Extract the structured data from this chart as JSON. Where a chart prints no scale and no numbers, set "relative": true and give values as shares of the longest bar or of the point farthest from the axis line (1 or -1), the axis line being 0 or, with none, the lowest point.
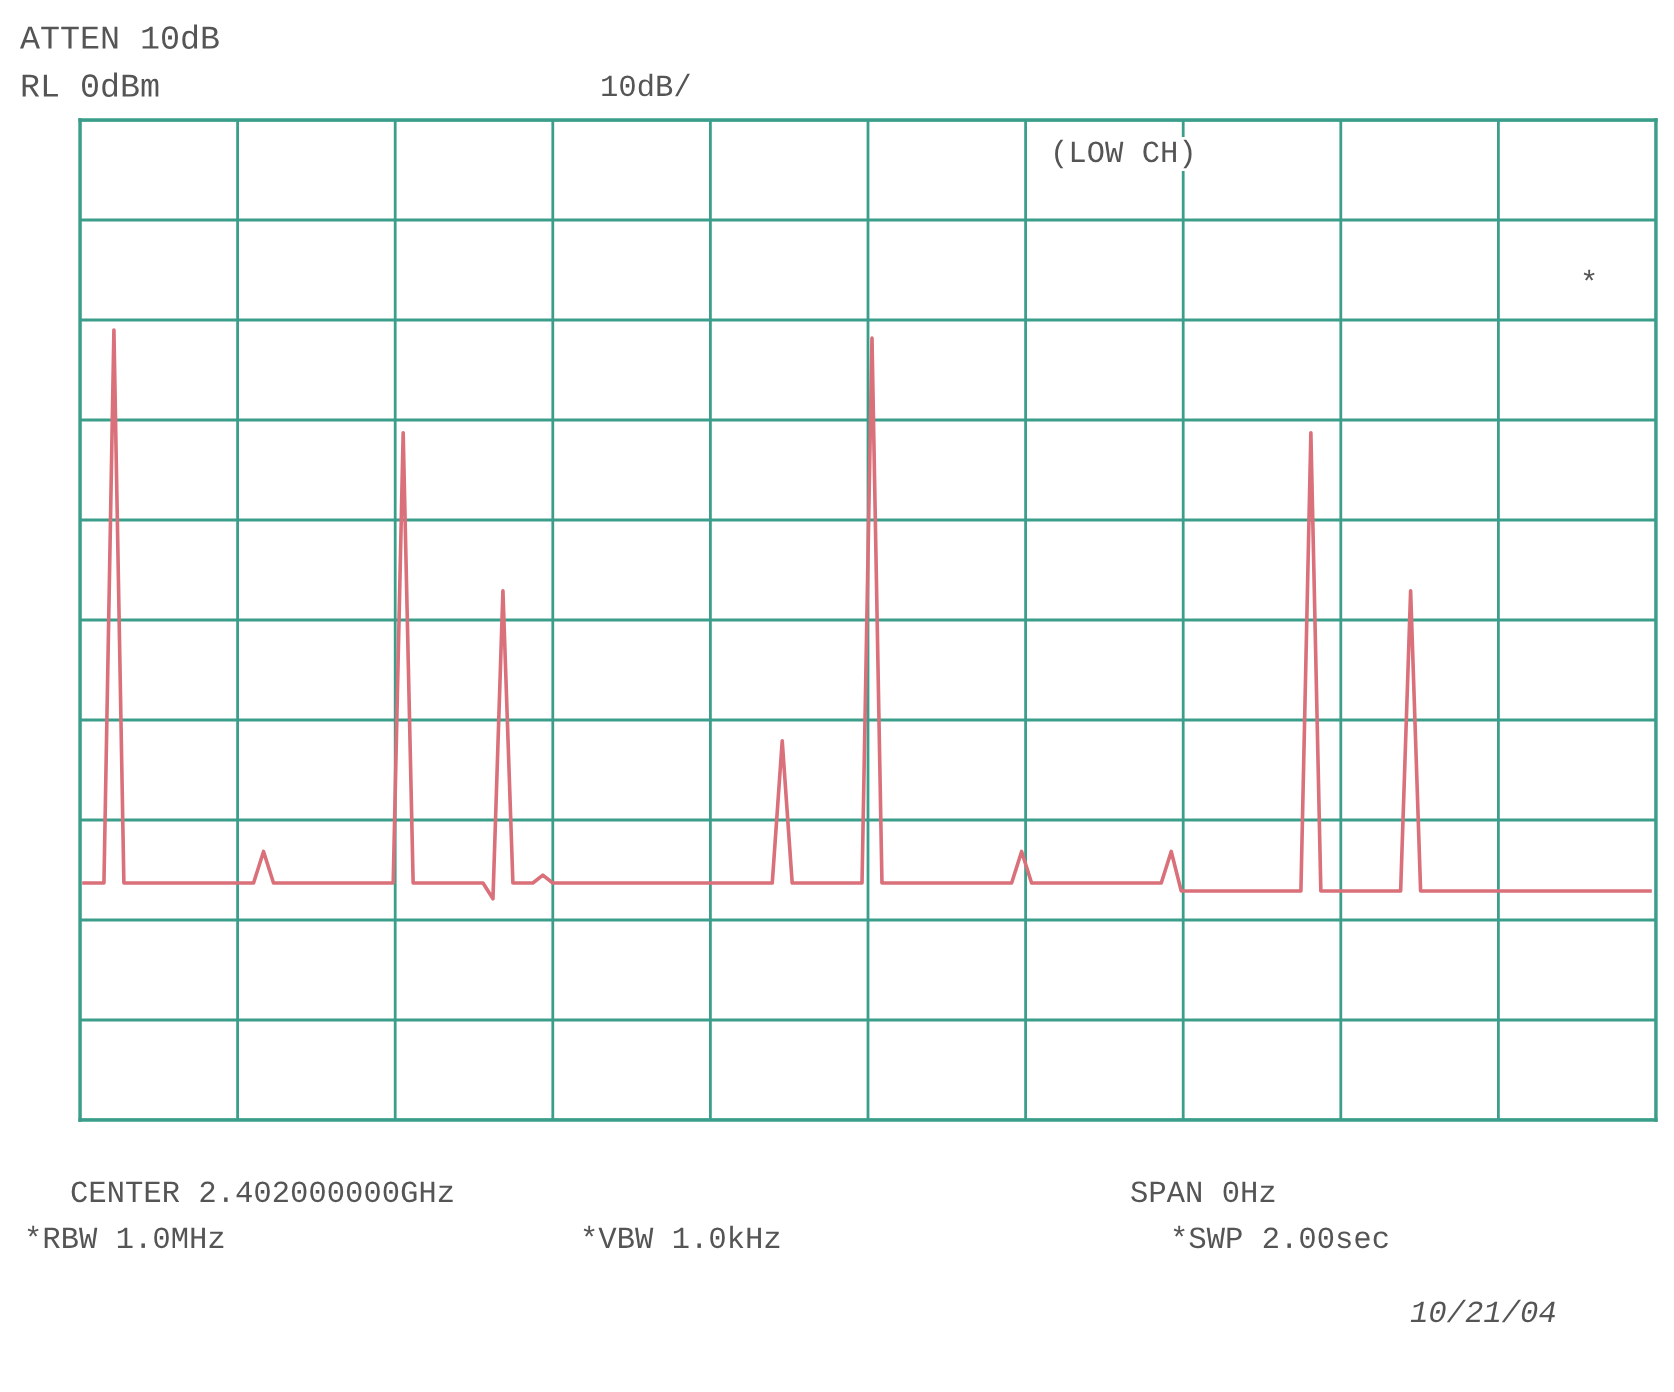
{
  "chart_data": {
    "type": "line",
    "title": "ATTEN 10dB",
    "subtitle": "RL 0dBm",
    "annotations": [
      "10dB/",
      "(LOW CH)",
      "*",
      "CENTER 2.402000000GHz",
      "SPAN 0Hz",
      "*RBW 1.0MHz",
      "*VBW 1.0kHz",
      "*SWP 2.00sec",
      "10/21/04"
    ],
    "categories": [
      null,
      null,
      null,
      null,
      null,
      null,
      null,
      null,
      null,
      null,
      null,
      null,
      null,
      null,
      null,
      null,
      null,
      null,
      null,
      null,
      null,
      null,
      null,
      null,
      null,
      null,
      null,
      null,
      null,
      null,
      null,
      null,
      null,
      null,
      null,
      null,
      null,
      null,
      null,
      null,
      null,
      null,
      null,
      null,
      null,
      null,
      null,
      null,
      null,
      null,
      null,
      null,
      null,
      null,
      null,
      null,
      null,
      null,
      null,
      null,
      null,
      null,
      null,
      null,
      null,
      null,
      null,
      null,
      null,
      null,
      null,
      null,
      null,
      null,
      null,
      null,
      null,
      null,
      null,
      null,
      null,
      null,
      null,
      null,
      null,
      null,
      null,
      null,
      null,
      null,
      null,
      null,
      null,
      null,
      null,
      null,
      null,
      null,
      null,
      null,
      null,
      null,
      null,
      null,
      null,
      null,
      null,
      null,
      null,
      null,
      null,
      null,
      null,
      null,
      null,
      null,
      null,
      null,
      null,
      null,
      null,
      null,
      null,
      null,
      null,
      null,
      null,
      null,
      null,
      null,
      null,
      null,
      null,
      null,
      null,
      null,
      null,
      null,
      null,
      null,
      null,
      null,
      null,
      null,
      null,
      null,
      null,
      null,
      null,
      null,
      null,
      null,
      null,
      null,
      null,
      null,
      null,
      null
    ],
    "series": [
      {
        "color": "#d9707a",
        "values": [
          0.3,
          0.3,
          0.3,
          1.0,
          0.3,
          0.3,
          0.3,
          0.3,
          0.3,
          0.3,
          0.3,
          0.3,
          0.3,
          0.3,
          0.3,
          0.3,
          0.3,
          0.3,
          0.34,
          0.3,
          0.3,
          0.3,
          0.3,
          0.3,
          0.3,
          0.3,
          0.3,
          0.3,
          0.3,
          0.3,
          0.3,
          0.3,
          0.87,
          0.3,
          0.3,
          0.3,
          0.3,
          0.3,
          0.3,
          0.3,
          0.3,
          0.28,
          0.67,
          0.3,
          0.3,
          0.3,
          0.31,
          0.3,
          0.3,
          0.3,
          0.3,
          0.3,
          0.3,
          0.3,
          0.3,
          0.3,
          0.3,
          0.3,
          0.3,
          0.3,
          0.3,
          0.3,
          0.3,
          0.3,
          0.3,
          0.3,
          0.3,
          0.3,
          0.3,
          0.3,
          0.48,
          0.3,
          0.3,
          0.3,
          0.3,
          0.3,
          0.3,
          0.3,
          0.3,
          0.99,
          0.3,
          0.3,
          0.3,
          0.3,
          0.3,
          0.3,
          0.3,
          0.3,
          0.3,
          0.3,
          0.3,
          0.3,
          0.3,
          0.3,
          0.34,
          0.3,
          0.3,
          0.3,
          0.3,
          0.3,
          0.3,
          0.3,
          0.3,
          0.3,
          0.3,
          0.3,
          0.3,
          0.3,
          0.3,
          0.34,
          0.29,
          0.29,
          0.29,
          0.29,
          0.29,
          0.29,
          0.29,
          0.29,
          0.29,
          0.29,
          0.29,
          0.29,
          0.29,
          0.87,
          0.29,
          0.29,
          0.29,
          0.29,
          0.29,
          0.29,
          0.29,
          0.29,
          0.29,
          0.67,
          0.29,
          0.29,
          0.29,
          0.29,
          0.29,
          0.29,
          0.29,
          0.29,
          0.29,
          0.29,
          0.29,
          0.29,
          0.29,
          0.29,
          0.29,
          0.29,
          0.29,
          0.29,
          0.29,
          0.29,
          0.29,
          0.29,
          0.29,
          0.29
        ]
      }
    ],
    "relative": true,
    "grid": true,
    "tick_labels": false
  }
}
